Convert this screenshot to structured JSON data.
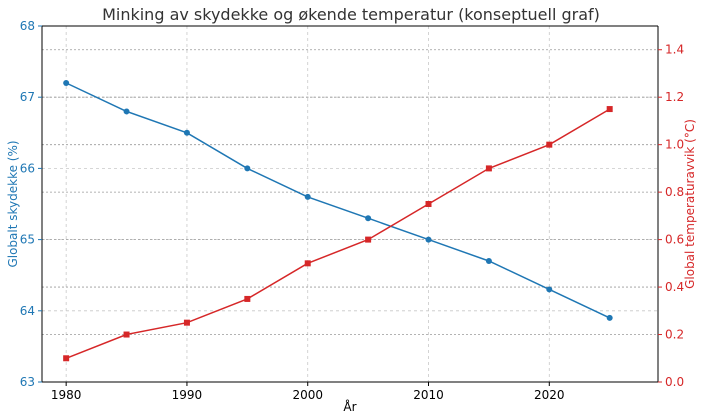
{
  "chart_data": {
    "type": "line",
    "title": "Minking av skydekke og økende temperatur (konseptuell graf)",
    "xlabel": "År",
    "ylabel_left": "Globalt skydekke (%)",
    "ylabel_right": "Global temperaturavvik (°C)",
    "x": [
      1980,
      1985,
      1990,
      1995,
      2000,
      2005,
      2010,
      2015,
      2020,
      2025
    ],
    "xlim": [
      1978,
      2029
    ],
    "x_ticks": [
      1980,
      1990,
      2000,
      2010,
      2020
    ],
    "ylim_left": [
      63,
      68
    ],
    "y_ticks_left": [
      63,
      64,
      65,
      66,
      67,
      68
    ],
    "ylim_right": [
      0,
      1.5
    ],
    "y_ticks_right": [
      "0.0",
      "0.2",
      "0.4",
      "0.6",
      "0.8",
      "1.0",
      "1.2",
      "1.4"
    ],
    "grid": true,
    "series": [
      {
        "axis": "left",
        "values": [
          67.2,
          66.8,
          66.5,
          66.0,
          65.6,
          65.3,
          65.0,
          64.7,
          64.3,
          63.9
        ],
        "color": "#1f77b4",
        "marker": "circle"
      },
      {
        "axis": "right",
        "values": [
          0.1,
          0.2,
          0.25,
          0.35,
          0.5,
          0.6,
          0.75,
          0.9,
          1.0,
          1.15
        ],
        "color": "#d62728",
        "marker": "square"
      }
    ]
  }
}
